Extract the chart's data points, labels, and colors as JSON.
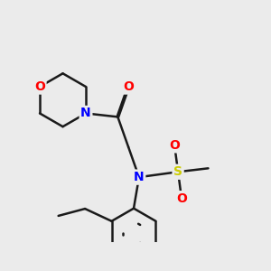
{
  "background_color": "#ebebeb",
  "bond_color": "#1a1a1a",
  "bond_width": 1.8,
  "atom_colors": {
    "O": "#ff0000",
    "N": "#0000ff",
    "S": "#cccc00",
    "C": "#1a1a1a"
  },
  "figsize": [
    3.0,
    3.0
  ],
  "dpi": 100
}
